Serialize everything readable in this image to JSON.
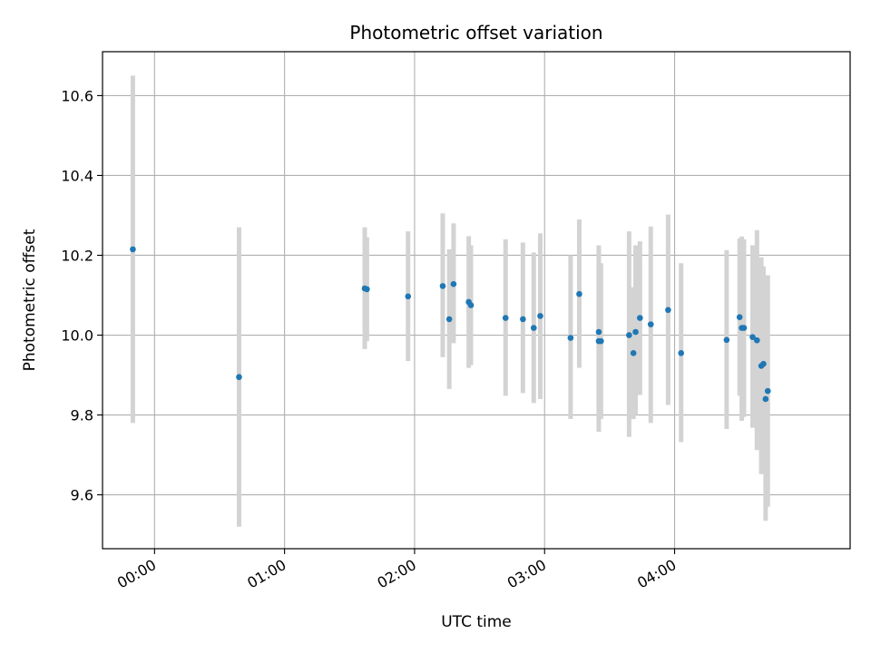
{
  "chart_data": {
    "type": "scatter",
    "title": "Photometric offset variation",
    "xlabel": "UTC time",
    "ylabel": "Photometric offset",
    "x_unit": "UTC time (HH:MM)",
    "xlim": [
      "23:36",
      "05:21"
    ],
    "ylim": [
      9.465,
      10.71
    ],
    "x_ticks": [
      "00:00",
      "01:00",
      "02:00",
      "03:00",
      "04:00"
    ],
    "y_ticks": [
      9.6,
      9.8,
      10.0,
      10.2,
      10.4,
      10.6
    ],
    "y_tick_labels": [
      "9.6",
      "9.8",
      "10.0",
      "10.2",
      "10.4",
      "10.6"
    ],
    "grid": true,
    "point_color": "#1f77b4",
    "errorbar_color": "#d3d3d3",
    "points": [
      {
        "x": "23:50",
        "y": 10.215,
        "lo": 9.78,
        "hi": 10.65
      },
      {
        "x": "00:39",
        "y": 9.895,
        "lo": 9.52,
        "hi": 10.27
      },
      {
        "x": "01:37",
        "y": 10.117,
        "lo": 9.965,
        "hi": 10.27
      },
      {
        "x": "01:38",
        "y": 10.115,
        "lo": 9.985,
        "hi": 10.245
      },
      {
        "x": "01:57",
        "y": 10.097,
        "lo": 9.935,
        "hi": 10.26
      },
      {
        "x": "02:13",
        "y": 10.123,
        "lo": 9.945,
        "hi": 10.305
      },
      {
        "x": "02:16",
        "y": 10.04,
        "lo": 9.865,
        "hi": 10.215
      },
      {
        "x": "02:18",
        "y": 10.128,
        "lo": 9.98,
        "hi": 10.28
      },
      {
        "x": "02:25",
        "y": 10.083,
        "lo": 9.918,
        "hi": 10.248
      },
      {
        "x": "02:26",
        "y": 10.075,
        "lo": 9.925,
        "hi": 10.225
      },
      {
        "x": "02:42",
        "y": 10.043,
        "lo": 9.848,
        "hi": 10.24
      },
      {
        "x": "02:50",
        "y": 10.04,
        "lo": 9.855,
        "hi": 10.232
      },
      {
        "x": "02:55",
        "y": 10.018,
        "lo": 9.83,
        "hi": 10.207
      },
      {
        "x": "02:58",
        "y": 10.048,
        "lo": 9.84,
        "hi": 10.255
      },
      {
        "x": "03:12",
        "y": 9.993,
        "lo": 9.79,
        "hi": 10.2
      },
      {
        "x": "03:16",
        "y": 10.103,
        "lo": 9.918,
        "hi": 10.29
      },
      {
        "x": "03:25",
        "y": 9.985,
        "lo": 9.758,
        "hi": 10.215
      },
      {
        "x": "03:25",
        "y": 10.008,
        "lo": 9.79,
        "hi": 10.225
      },
      {
        "x": "03:26",
        "y": 9.985,
        "lo": 9.79,
        "hi": 10.18
      },
      {
        "x": "03:39",
        "y": 10.0,
        "lo": 9.745,
        "hi": 10.26
      },
      {
        "x": "03:41",
        "y": 9.955,
        "lo": 9.79,
        "hi": 10.12
      },
      {
        "x": "03:42",
        "y": 10.008,
        "lo": 9.8,
        "hi": 10.225
      },
      {
        "x": "03:44",
        "y": 10.043,
        "lo": 9.85,
        "hi": 10.235
      },
      {
        "x": "03:49",
        "y": 10.027,
        "lo": 9.78,
        "hi": 10.272
      },
      {
        "x": "03:57",
        "y": 10.063,
        "lo": 9.825,
        "hi": 10.302
      },
      {
        "x": "04:03",
        "y": 9.955,
        "lo": 9.732,
        "hi": 10.18
      },
      {
        "x": "04:24",
        "y": 9.988,
        "lo": 9.765,
        "hi": 10.213
      },
      {
        "x": "04:30",
        "y": 10.045,
        "lo": 9.848,
        "hi": 10.242
      },
      {
        "x": "04:31",
        "y": 10.018,
        "lo": 9.785,
        "hi": 10.247
      },
      {
        "x": "04:32",
        "y": 10.018,
        "lo": 9.795,
        "hi": 10.24
      },
      {
        "x": "04:36",
        "y": 9.995,
        "lo": 9.768,
        "hi": 10.225
      },
      {
        "x": "04:38",
        "y": 9.987,
        "lo": 9.712,
        "hi": 10.263
      },
      {
        "x": "04:40",
        "y": 9.923,
        "lo": 9.652,
        "hi": 10.195
      },
      {
        "x": "04:41",
        "y": 9.928,
        "lo": 9.685,
        "hi": 10.172
      },
      {
        "x": "04:42",
        "y": 9.84,
        "lo": 9.535,
        "hi": 10.148
      },
      {
        "x": "04:43",
        "y": 9.86,
        "lo": 9.57,
        "hi": 10.15
      }
    ]
  }
}
